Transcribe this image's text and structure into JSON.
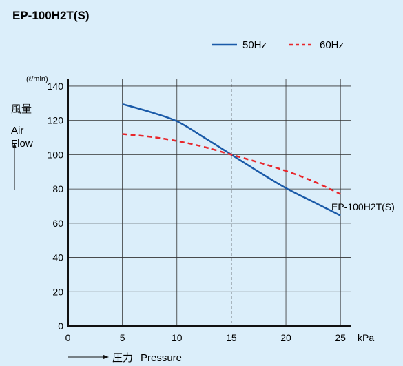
{
  "chart_data": {
    "type": "line",
    "title": "EP-100H2T(S)",
    "x": [
      5,
      7.5,
      10,
      12.5,
      15,
      17.5,
      20,
      22.5,
      25
    ],
    "series": [
      {
        "name": "50Hz",
        "color": "#1a5aa8",
        "style": "solid",
        "values": [
          129.5,
          125,
          119.5,
          110,
          100,
          90,
          80.5,
          72.5,
          64.5
        ]
      },
      {
        "name": "60Hz",
        "color": "#e8262b",
        "style": "dashed",
        "values": [
          112,
          110.5,
          108,
          104.5,
          100,
          95.5,
          90.5,
          84.5,
          77
        ]
      }
    ],
    "xlim": [
      0,
      26
    ],
    "ylim": [
      0,
      144
    ],
    "xticks": [
      0,
      5,
      10,
      15,
      20,
      25
    ],
    "yticks": [
      0,
      20,
      40,
      60,
      80,
      100,
      120,
      140
    ],
    "x_unit": "kPa",
    "y_unit": "(ℓ/min)",
    "ylabel_ja": "風量",
    "ylabel_en_1": "Air",
    "ylabel_en_2": "Flow",
    "xlabel_ja": "圧力",
    "xlabel_en": "Pressure",
    "annotation": "EP-100H2T(S)",
    "reference_line_x": 15,
    "grid": true,
    "legend_position": "top-right"
  }
}
